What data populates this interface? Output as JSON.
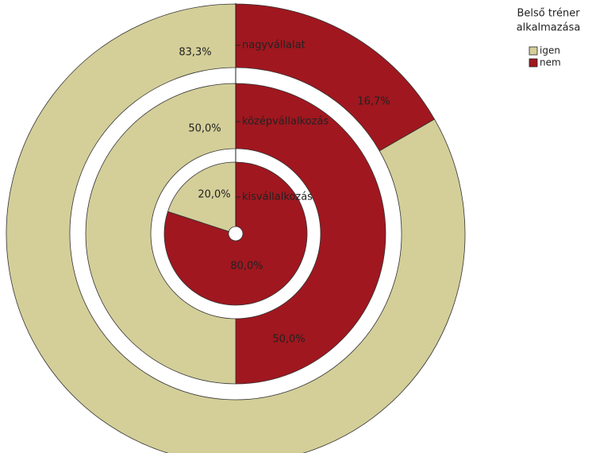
{
  "chart_data": {
    "type": "donut",
    "legend_title": [
      "Belső tréner",
      "alkalmazása"
    ],
    "categories": [
      "igen",
      "nem"
    ],
    "colors": [
      "#d4cf99",
      "#a0171f"
    ],
    "rings": [
      {
        "name": "nagyvállalat",
        "values": [
          83.3,
          16.7
        ],
        "value_labels": [
          "83,3%",
          "16,7%"
        ]
      },
      {
        "name": "középvállalkozás",
        "values": [
          50.0,
          50.0
        ],
        "value_labels": [
          "50,0%",
          "50,0%"
        ]
      },
      {
        "name": "kisvállalkozás",
        "values": [
          20.0,
          80.0
        ],
        "value_labels": [
          "20,0%",
          "80,0%"
        ]
      }
    ]
  }
}
